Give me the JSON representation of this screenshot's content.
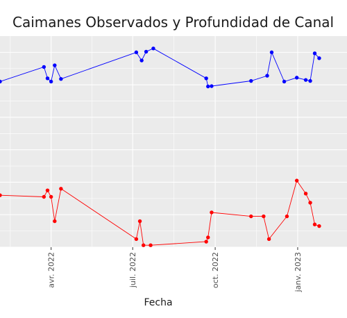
{
  "chart_data": {
    "type": "line",
    "title": "Caimanes Observados y Profundidad de Canal",
    "xlabel": "Fecha",
    "ylabel": "",
    "x_tick_labels": [
      {
        "date": "2022-04-01",
        "label": "avr. 2022"
      },
      {
        "date": "2022-07-01",
        "label": "juil. 2022"
      },
      {
        "date": "2022-10-01",
        "label": "oct. 2022"
      },
      {
        "date": "2023-01-01",
        "label": "janv. 2023"
      }
    ],
    "xlim": [
      "2022-02-03",
      "2023-02-25"
    ],
    "ylim": [
      0,
      6.5
    ],
    "grid": true,
    "legend": "none",
    "series": [
      {
        "color": "#0000ff",
        "points": [
          {
            "x": "2022-02-03",
            "y": 5.1
          },
          {
            "x": "2022-03-24",
            "y": 5.55
          },
          {
            "x": "2022-03-28",
            "y": 5.2
          },
          {
            "x": "2022-04-01",
            "y": 5.1
          },
          {
            "x": "2022-04-05",
            "y": 5.6
          },
          {
            "x": "2022-04-12",
            "y": 5.18
          },
          {
            "x": "2022-07-05",
            "y": 6.0
          },
          {
            "x": "2022-07-11",
            "y": 5.75
          },
          {
            "x": "2022-07-16",
            "y": 6.02
          },
          {
            "x": "2022-07-24",
            "y": 6.12
          },
          {
            "x": "2022-09-21",
            "y": 5.2
          },
          {
            "x": "2022-09-23",
            "y": 4.95
          },
          {
            "x": "2022-09-27",
            "y": 4.96
          },
          {
            "x": "2022-11-10",
            "y": 5.12
          },
          {
            "x": "2022-11-28",
            "y": 5.28
          },
          {
            "x": "2022-12-03",
            "y": 6.0
          },
          {
            "x": "2022-12-17",
            "y": 5.1
          },
          {
            "x": "2022-12-31",
            "y": 5.22
          },
          {
            "x": "2023-01-10",
            "y": 5.15
          },
          {
            "x": "2023-01-15",
            "y": 5.12
          },
          {
            "x": "2023-01-20",
            "y": 5.97
          },
          {
            "x": "2023-01-25",
            "y": 5.82
          }
        ]
      },
      {
        "color": "#ff0000",
        "points": [
          {
            "x": "2022-02-03",
            "y": 1.6
          },
          {
            "x": "2022-03-24",
            "y": 1.55
          },
          {
            "x": "2022-03-28",
            "y": 1.75
          },
          {
            "x": "2022-04-01",
            "y": 1.55
          },
          {
            "x": "2022-04-05",
            "y": 0.8
          },
          {
            "x": "2022-04-12",
            "y": 1.8
          },
          {
            "x": "2022-07-05",
            "y": 0.25
          },
          {
            "x": "2022-07-09",
            "y": 0.8
          },
          {
            "x": "2022-07-13",
            "y": 0.06
          },
          {
            "x": "2022-07-21",
            "y": 0.06
          },
          {
            "x": "2022-09-21",
            "y": 0.17
          },
          {
            "x": "2022-09-23",
            "y": 0.3
          },
          {
            "x": "2022-09-27",
            "y": 1.07
          },
          {
            "x": "2022-11-10",
            "y": 0.95
          },
          {
            "x": "2022-11-24",
            "y": 0.95
          },
          {
            "x": "2022-11-30",
            "y": 0.25
          },
          {
            "x": "2022-12-20",
            "y": 0.95
          },
          {
            "x": "2022-12-31",
            "y": 2.05
          },
          {
            "x": "2023-01-10",
            "y": 1.65
          },
          {
            "x": "2023-01-15",
            "y": 1.37
          },
          {
            "x": "2023-01-20",
            "y": 0.7
          },
          {
            "x": "2023-01-25",
            "y": 0.65
          }
        ]
      }
    ]
  }
}
